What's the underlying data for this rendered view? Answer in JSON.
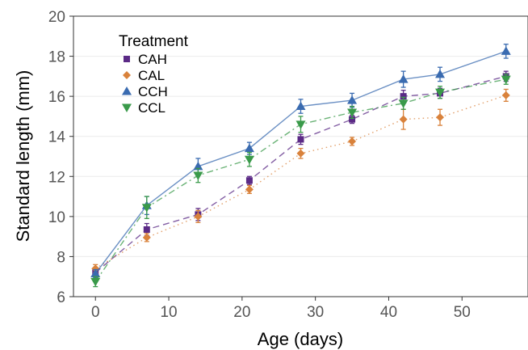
{
  "chart_data": {
    "type": "line",
    "title": "",
    "xlabel": "Age (days)",
    "ylabel": "Standard length (mm)",
    "xlim": [
      -3,
      59
    ],
    "ylim": [
      6,
      20
    ],
    "xticks": [
      0,
      10,
      20,
      30,
      40,
      50
    ],
    "yticks": [
      6,
      8,
      10,
      12,
      14,
      16,
      18,
      20
    ],
    "grid": "horizontal",
    "legend": {
      "title": "Treatment",
      "position": "top-left"
    },
    "series": [
      {
        "name": "CAH",
        "color": "#5b2a86",
        "marker": "square",
        "line": "dashed",
        "x": [
          0,
          7,
          14,
          21,
          28,
          35,
          42,
          47,
          56
        ],
        "y": [
          7.2,
          9.35,
          10.1,
          11.8,
          13.85,
          14.85,
          16.0,
          16.15,
          17.0
        ],
        "err": [
          0.2,
          0.3,
          0.3,
          0.2,
          0.25,
          0.2,
          0.3,
          0.25,
          0.25
        ]
      },
      {
        "name": "CAL",
        "color": "#d9823b",
        "marker": "diamond",
        "line": "dotted",
        "x": [
          0,
          7,
          14,
          21,
          28,
          35,
          42,
          47,
          56
        ],
        "y": [
          7.4,
          8.95,
          10.0,
          11.35,
          13.15,
          13.75,
          14.85,
          14.95,
          16.05
        ],
        "err": [
          0.2,
          0.2,
          0.3,
          0.2,
          0.25,
          0.2,
          0.5,
          0.4,
          0.3
        ]
      },
      {
        "name": "CCH",
        "color": "#3a6bb0",
        "marker": "triangle-up",
        "line": "solid",
        "x": [
          0,
          7,
          14,
          21,
          28,
          35,
          42,
          47,
          56
        ],
        "y": [
          7.15,
          10.55,
          12.5,
          13.4,
          15.5,
          15.8,
          16.85,
          17.1,
          18.25
        ],
        "err": [
          0.2,
          0.45,
          0.4,
          0.3,
          0.35,
          0.35,
          0.4,
          0.35,
          0.35
        ]
      },
      {
        "name": "CCL",
        "color": "#3a9a4a",
        "marker": "triangle-down",
        "line": "dashdot",
        "x": [
          0,
          7,
          14,
          21,
          28,
          35,
          42,
          47,
          56
        ],
        "y": [
          6.75,
          10.45,
          12.05,
          12.85,
          14.6,
          15.2,
          15.65,
          16.2,
          16.85
        ],
        "err": [
          0.25,
          0.55,
          0.35,
          0.35,
          0.4,
          0.3,
          0.3,
          0.3,
          0.25
        ]
      }
    ]
  }
}
